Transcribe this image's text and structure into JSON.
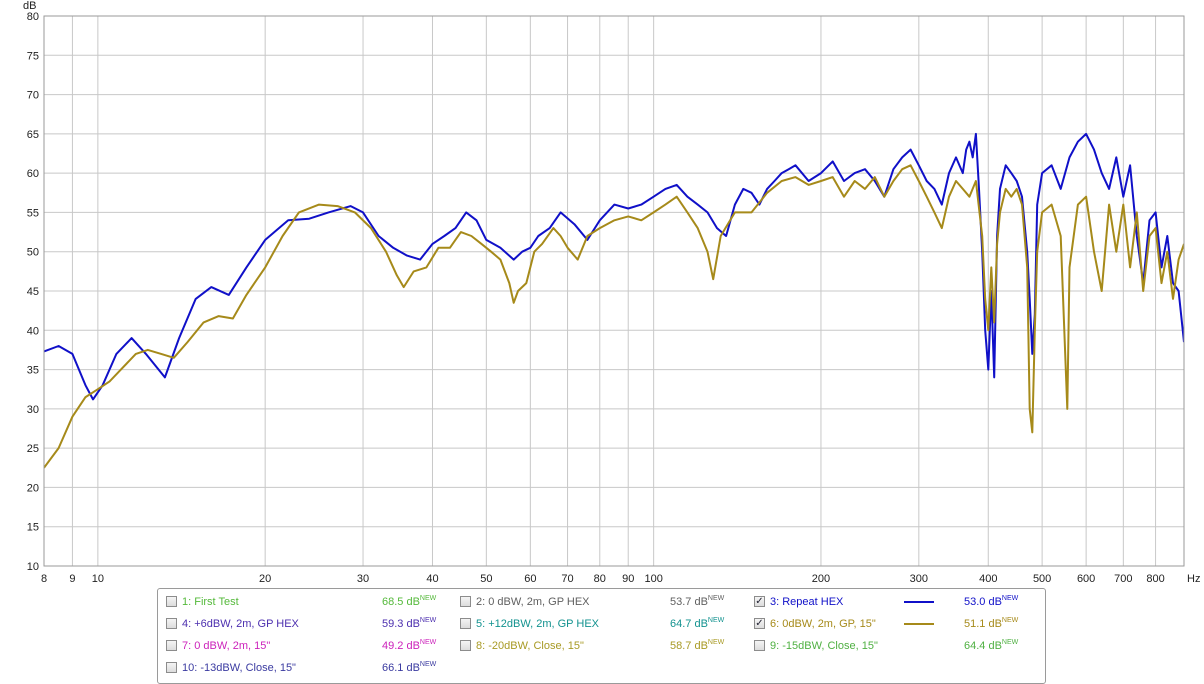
{
  "chart_data": {
    "type": "line",
    "title": "",
    "xlabel": "Hz",
    "ylabel": "dB",
    "xscale": "log",
    "xlim": [
      8,
      900
    ],
    "ylim": [
      10,
      80
    ],
    "grid": true,
    "x_ticks": [
      {
        "v": 8,
        "label": "8"
      },
      {
        "v": 9,
        "label": "9"
      },
      {
        "v": 10,
        "label": "10"
      },
      {
        "v": 20,
        "label": "20"
      },
      {
        "v": 30,
        "label": "30"
      },
      {
        "v": 40,
        "label": "40"
      },
      {
        "v": 50,
        "label": "50"
      },
      {
        "v": 60,
        "label": "60"
      },
      {
        "v": 70,
        "label": "70"
      },
      {
        "v": 80,
        "label": "80"
      },
      {
        "v": 90,
        "label": "90"
      },
      {
        "v": 100,
        "label": "100"
      },
      {
        "v": 200,
        "label": "200"
      },
      {
        "v": 300,
        "label": "300"
      },
      {
        "v": 400,
        "label": "400"
      },
      {
        "v": 500,
        "label": "500"
      },
      {
        "v": 600,
        "label": "600"
      },
      {
        "v": 700,
        "label": "700"
      },
      {
        "v": 800,
        "label": "800"
      }
    ],
    "y_ticks": [
      10,
      15,
      20,
      25,
      30,
      35,
      40,
      45,
      50,
      55,
      60,
      65,
      70,
      75,
      80
    ],
    "series": [
      {
        "name": "3: Repeat HEX",
        "color": "#1010c8",
        "points": [
          [
            8,
            37.3
          ],
          [
            8.5,
            38
          ],
          [
            9,
            37
          ],
          [
            9.5,
            33
          ],
          [
            9.8,
            31.2
          ],
          [
            10.2,
            33
          ],
          [
            10.8,
            37
          ],
          [
            11.5,
            39
          ],
          [
            12.2,
            37
          ],
          [
            13.2,
            34
          ],
          [
            14,
            39
          ],
          [
            15,
            44
          ],
          [
            16,
            45.5
          ],
          [
            17.2,
            44.5
          ],
          [
            18.5,
            48
          ],
          [
            20,
            51.5
          ],
          [
            22,
            54
          ],
          [
            24,
            54.2
          ],
          [
            26,
            55
          ],
          [
            28.5,
            55.8
          ],
          [
            30,
            55
          ],
          [
            32,
            52
          ],
          [
            34,
            50.5
          ],
          [
            36,
            49.5
          ],
          [
            38,
            49
          ],
          [
            40,
            51
          ],
          [
            42,
            52
          ],
          [
            44,
            53
          ],
          [
            46,
            55
          ],
          [
            48,
            54
          ],
          [
            50,
            51.5
          ],
          [
            53,
            50.5
          ],
          [
            56,
            49
          ],
          [
            58,
            50
          ],
          [
            60,
            50.5
          ],
          [
            62,
            52
          ],
          [
            65,
            53
          ],
          [
            68,
            55
          ],
          [
            72,
            53.5
          ],
          [
            76,
            51.5
          ],
          [
            80,
            54
          ],
          [
            85,
            56
          ],
          [
            90,
            55.5
          ],
          [
            95,
            56
          ],
          [
            100,
            57
          ],
          [
            105,
            58
          ],
          [
            110,
            58.5
          ],
          [
            115,
            57
          ],
          [
            120,
            56
          ],
          [
            125,
            55
          ],
          [
            130,
            53
          ],
          [
            135,
            52
          ],
          [
            140,
            56
          ],
          [
            145,
            58
          ],
          [
            150,
            57.5
          ],
          [
            155,
            56
          ],
          [
            160,
            58
          ],
          [
            165,
            59
          ],
          [
            170,
            60
          ],
          [
            175,
            60.5
          ],
          [
            180,
            61
          ],
          [
            190,
            59
          ],
          [
            200,
            60
          ],
          [
            210,
            61.5
          ],
          [
            220,
            59
          ],
          [
            230,
            60
          ],
          [
            240,
            60.5
          ],
          [
            250,
            59
          ],
          [
            260,
            57
          ],
          [
            270,
            60.5
          ],
          [
            280,
            62
          ],
          [
            290,
            63
          ],
          [
            300,
            61
          ],
          [
            310,
            59
          ],
          [
            320,
            58
          ],
          [
            330,
            56
          ],
          [
            340,
            60
          ],
          [
            350,
            62
          ],
          [
            360,
            60
          ],
          [
            365,
            63
          ],
          [
            370,
            64
          ],
          [
            375,
            62
          ],
          [
            380,
            65
          ],
          [
            385,
            58
          ],
          [
            390,
            50
          ],
          [
            395,
            40
          ],
          [
            400,
            35
          ],
          [
            405,
            45
          ],
          [
            410,
            34
          ],
          [
            415,
            52
          ],
          [
            420,
            58
          ],
          [
            430,
            61
          ],
          [
            440,
            60
          ],
          [
            450,
            59
          ],
          [
            460,
            57
          ],
          [
            470,
            50
          ],
          [
            475,
            44
          ],
          [
            480,
            37
          ],
          [
            485,
            42
          ],
          [
            490,
            56
          ],
          [
            500,
            60
          ],
          [
            520,
            61
          ],
          [
            540,
            58
          ],
          [
            560,
            62
          ],
          [
            580,
            64
          ],
          [
            600,
            65
          ],
          [
            620,
            63
          ],
          [
            640,
            60
          ],
          [
            660,
            58
          ],
          [
            680,
            62
          ],
          [
            700,
            57
          ],
          [
            720,
            61
          ],
          [
            740,
            52
          ],
          [
            760,
            46
          ],
          [
            780,
            54
          ],
          [
            800,
            55
          ],
          [
            820,
            48
          ],
          [
            840,
            52
          ],
          [
            860,
            46
          ],
          [
            880,
            45
          ],
          [
            900,
            38.5
          ]
        ]
      },
      {
        "name": "6: 0dBW, 2m, GP, 15\"",
        "color": "#a68a1a",
        "points": [
          [
            8,
            22.5
          ],
          [
            8.5,
            25
          ],
          [
            9,
            29
          ],
          [
            9.5,
            31.5
          ],
          [
            10,
            32.5
          ],
          [
            10.5,
            33.5
          ],
          [
            11,
            35
          ],
          [
            11.7,
            37
          ],
          [
            12.3,
            37.5
          ],
          [
            13,
            37
          ],
          [
            13.7,
            36.5
          ],
          [
            14.5,
            38.5
          ],
          [
            15.5,
            41
          ],
          [
            16.5,
            41.8
          ],
          [
            17.5,
            41.5
          ],
          [
            18.5,
            44.5
          ],
          [
            20,
            48
          ],
          [
            21.5,
            52
          ],
          [
            23,
            55
          ],
          [
            25,
            56
          ],
          [
            27,
            55.8
          ],
          [
            29,
            55
          ],
          [
            31,
            53
          ],
          [
            33,
            50
          ],
          [
            34.5,
            47
          ],
          [
            35.5,
            45.5
          ],
          [
            37,
            47.5
          ],
          [
            39,
            48
          ],
          [
            41,
            50.5
          ],
          [
            43,
            50.5
          ],
          [
            45,
            52.5
          ],
          [
            47,
            52
          ],
          [
            49,
            51
          ],
          [
            51,
            50
          ],
          [
            53,
            49
          ],
          [
            55,
            46
          ],
          [
            56,
            43.5
          ],
          [
            57,
            45
          ],
          [
            59,
            46
          ],
          [
            61,
            50
          ],
          [
            63,
            51
          ],
          [
            66,
            53
          ],
          [
            68,
            52
          ],
          [
            70,
            50.5
          ],
          [
            73,
            49
          ],
          [
            76,
            52
          ],
          [
            80,
            53
          ],
          [
            85,
            54
          ],
          [
            90,
            54.5
          ],
          [
            95,
            54
          ],
          [
            100,
            55
          ],
          [
            105,
            56
          ],
          [
            110,
            57
          ],
          [
            115,
            55
          ],
          [
            120,
            53
          ],
          [
            125,
            50
          ],
          [
            128,
            46.5
          ],
          [
            132,
            52
          ],
          [
            140,
            55
          ],
          [
            150,
            55
          ],
          [
            160,
            57.5
          ],
          [
            170,
            59
          ],
          [
            180,
            59.5
          ],
          [
            190,
            58.5
          ],
          [
            200,
            59
          ],
          [
            210,
            59.5
          ],
          [
            220,
            57
          ],
          [
            230,
            59
          ],
          [
            240,
            58
          ],
          [
            250,
            59.5
          ],
          [
            260,
            57
          ],
          [
            270,
            59
          ],
          [
            280,
            60.5
          ],
          [
            290,
            61
          ],
          [
            300,
            59
          ],
          [
            310,
            57
          ],
          [
            320,
            55
          ],
          [
            330,
            53
          ],
          [
            340,
            57
          ],
          [
            350,
            59
          ],
          [
            360,
            58
          ],
          [
            370,
            57
          ],
          [
            380,
            59
          ],
          [
            390,
            52
          ],
          [
            395,
            44
          ],
          [
            400,
            40
          ],
          [
            405,
            48
          ],
          [
            410,
            41
          ],
          [
            415,
            51
          ],
          [
            420,
            55
          ],
          [
            430,
            58
          ],
          [
            440,
            57
          ],
          [
            450,
            58
          ],
          [
            460,
            56
          ],
          [
            470,
            48
          ],
          [
            475,
            30
          ],
          [
            480,
            27
          ],
          [
            485,
            40
          ],
          [
            490,
            50
          ],
          [
            500,
            55
          ],
          [
            520,
            56
          ],
          [
            540,
            52
          ],
          [
            555,
            30
          ],
          [
            560,
            48
          ],
          [
            580,
            56
          ],
          [
            600,
            57
          ],
          [
            620,
            50
          ],
          [
            640,
            45
          ],
          [
            660,
            56
          ],
          [
            680,
            50
          ],
          [
            700,
            56
          ],
          [
            720,
            48
          ],
          [
            740,
            55
          ],
          [
            760,
            45
          ],
          [
            780,
            52
          ],
          [
            800,
            53
          ],
          [
            820,
            46
          ],
          [
            840,
            50
          ],
          [
            860,
            44
          ],
          [
            880,
            49
          ],
          [
            900,
            51
          ]
        ]
      }
    ]
  },
  "legend": {
    "items": [
      {
        "label": "1: First Test",
        "value": "68.5 dB",
        "sup": "NEW",
        "checked": false,
        "color": "#54b93a",
        "valcolor": "#54b93a",
        "swatch": ""
      },
      {
        "label": "2: 0 dBW, 2m, GP HEX",
        "value": "53.7 dB",
        "sup": "NEW",
        "checked": false,
        "color": "#606060",
        "valcolor": "#606060",
        "swatch": ""
      },
      {
        "label": "3: Repeat HEX",
        "value": "53.0 dB",
        "sup": "NEW",
        "checked": true,
        "color": "#1010c8",
        "valcolor": "#1010c8",
        "swatch": "#1010c8"
      },
      {
        "label": "4: +6dBW, 2m, GP HEX",
        "value": "59.3 dB",
        "sup": "NEW",
        "checked": false,
        "color": "#4c2faf",
        "valcolor": "#4c2faf",
        "swatch": ""
      },
      {
        "label": "5: +12dBW, 2m, GP HEX",
        "value": "64.7 dB",
        "sup": "NEW",
        "checked": false,
        "color": "#12928f",
        "valcolor": "#12928f",
        "swatch": ""
      },
      {
        "label": "6: 0dBW, 2m, GP, 15\"",
        "value": "51.1 dB",
        "sup": "NEW",
        "checked": true,
        "color": "#a68a1a",
        "valcolor": "#a68a1a",
        "swatch": "#a68a1a"
      },
      {
        "label": "7: 0 dBW, 2m, 15\"",
        "value": "49.2 dB",
        "sup": "NEW",
        "checked": false,
        "color": "#cc22bb",
        "valcolor": "#cc22bb",
        "swatch": ""
      },
      {
        "label": "8: -20dBW, Close, 15\"",
        "value": "58.7 dB",
        "sup": "NEW",
        "checked": false,
        "color": "#a89a24",
        "valcolor": "#a89a24",
        "swatch": ""
      },
      {
        "label": "9: -15dBW, Close, 15\"",
        "value": "64.4 dB",
        "sup": "NEW",
        "checked": false,
        "color": "#4fb042",
        "valcolor": "#4fb042",
        "swatch": ""
      },
      {
        "label": "10: -13dBW, Close, 15\"",
        "value": "66.1 dB",
        "sup": "NEW",
        "checked": false,
        "color": "#3a3aa0",
        "valcolor": "#3a3aa0",
        "swatch": ""
      }
    ]
  }
}
